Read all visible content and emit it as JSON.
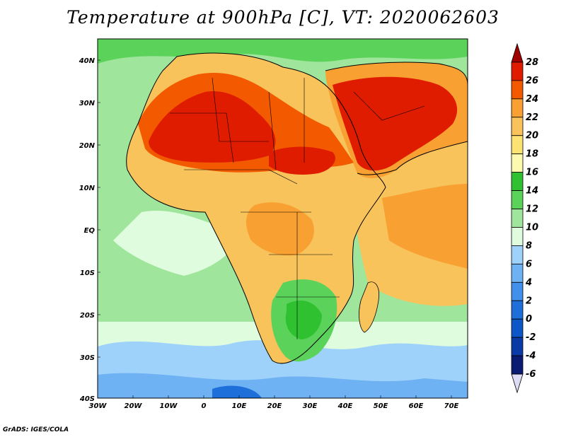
{
  "title": "Temperature at 900hPa [C], VT: 2020062603",
  "credit": "GrADS: IGES/COLA",
  "latitude_labels": [
    "40N",
    "30N",
    "20N",
    "10N",
    "EQ",
    "10S",
    "20S",
    "30S",
    "40S"
  ],
  "longitude_labels": [
    "30W",
    "20W",
    "10W",
    "0",
    "10E",
    "20E",
    "30E",
    "40E",
    "50E",
    "60E",
    "70E"
  ],
  "colorbar": {
    "labels": [
      "28",
      "26",
      "24",
      "22",
      "20",
      "18",
      "16",
      "14",
      "12",
      "10",
      "8",
      "6",
      "4",
      "2",
      "0",
      "-2",
      "-4",
      "-6"
    ],
    "colors": [
      "#a00000",
      "#e01c00",
      "#f35a00",
      "#f8a031",
      "#f8c35b",
      "#fce173",
      "#fdfaaf",
      "#2fc12f",
      "#5bd35b",
      "#a0e59c",
      "#e0fcdf",
      "#9fd2fa",
      "#6fb2f3",
      "#4090ec",
      "#1e6fda",
      "#0c56c8",
      "#0a3aa6",
      "#0a1b73",
      "#dcdcf5"
    ]
  },
  "palette": {
    "sea_cold": "#9fd2fa",
    "sea_cool": "#e0fcdf",
    "sea_mild": "#a0e59c",
    "land_warm": "#f8a031",
    "land_hot": "#e01c00",
    "land_mild": "#fce173"
  }
}
